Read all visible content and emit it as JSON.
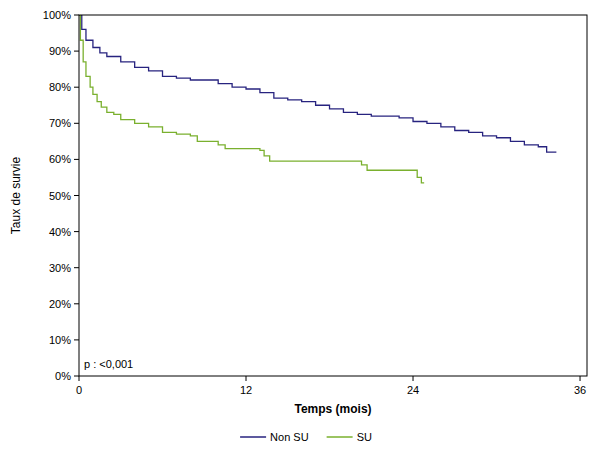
{
  "chart_data": {
    "type": "step",
    "x_label": "Temps (mois)",
    "y_label": "Taux de survie",
    "annotation": "p : <0,001",
    "xlim": [
      0,
      36.5
    ],
    "xticks": [
      0,
      12,
      24,
      36
    ],
    "ylim": [
      0,
      100
    ],
    "yticks": [
      {
        "value": 0,
        "label": "0%"
      },
      {
        "value": 10,
        "label": "10%"
      },
      {
        "value": 20,
        "label": "20%"
      },
      {
        "value": 30,
        "label": "30%"
      },
      {
        "value": 40,
        "label": "40%"
      },
      {
        "value": 50,
        "label": "50%"
      },
      {
        "value": 60,
        "label": "60%"
      },
      {
        "value": 70,
        "label": "70%"
      },
      {
        "value": 80,
        "label": "80%"
      },
      {
        "value": 90,
        "label": "90%"
      },
      {
        "value": 100,
        "label": "100%"
      }
    ],
    "grid": false,
    "legend": "bottom",
    "series": [
      {
        "name": "Non SU",
        "color": "#27237f",
        "x": [
          0,
          0.2,
          0.5,
          1,
          1.5,
          2,
          3,
          4,
          5,
          6,
          7,
          8,
          10,
          11,
          12,
          13,
          14,
          15,
          16,
          17,
          18,
          19,
          20,
          21,
          23,
          24,
          25,
          26,
          27,
          28,
          29,
          30,
          31,
          32,
          33,
          33.6,
          34.3
        ],
        "values": [
          100,
          96,
          93,
          91,
          89.5,
          88.5,
          87,
          85.5,
          84.5,
          83,
          82.5,
          82,
          81,
          80,
          79.5,
          78.5,
          77,
          76.5,
          76,
          75,
          74,
          73,
          72.5,
          72,
          71.5,
          70.5,
          70,
          69,
          68,
          67.5,
          66.5,
          66,
          65,
          64,
          63.5,
          62,
          62
        ]
      },
      {
        "name": "SU",
        "color": "#7ab02e",
        "x": [
          0,
          0.1,
          0.3,
          0.5,
          0.8,
          1,
          1.3,
          1.6,
          2,
          2.5,
          3,
          4,
          5,
          6,
          7,
          8,
          8.5,
          10,
          10.5,
          13,
          13.3,
          13.7,
          20,
          20.3,
          20.7,
          24,
          24.3,
          24.6,
          24.8
        ],
        "values": [
          100,
          93,
          87,
          83,
          80,
          78,
          76,
          74.5,
          73,
          72.5,
          71,
          70,
          69,
          67.5,
          67,
          66.5,
          65,
          64,
          63,
          62.5,
          61,
          59.5,
          59.5,
          58.5,
          57,
          57,
          55,
          53.5,
          53.5
        ]
      }
    ]
  }
}
